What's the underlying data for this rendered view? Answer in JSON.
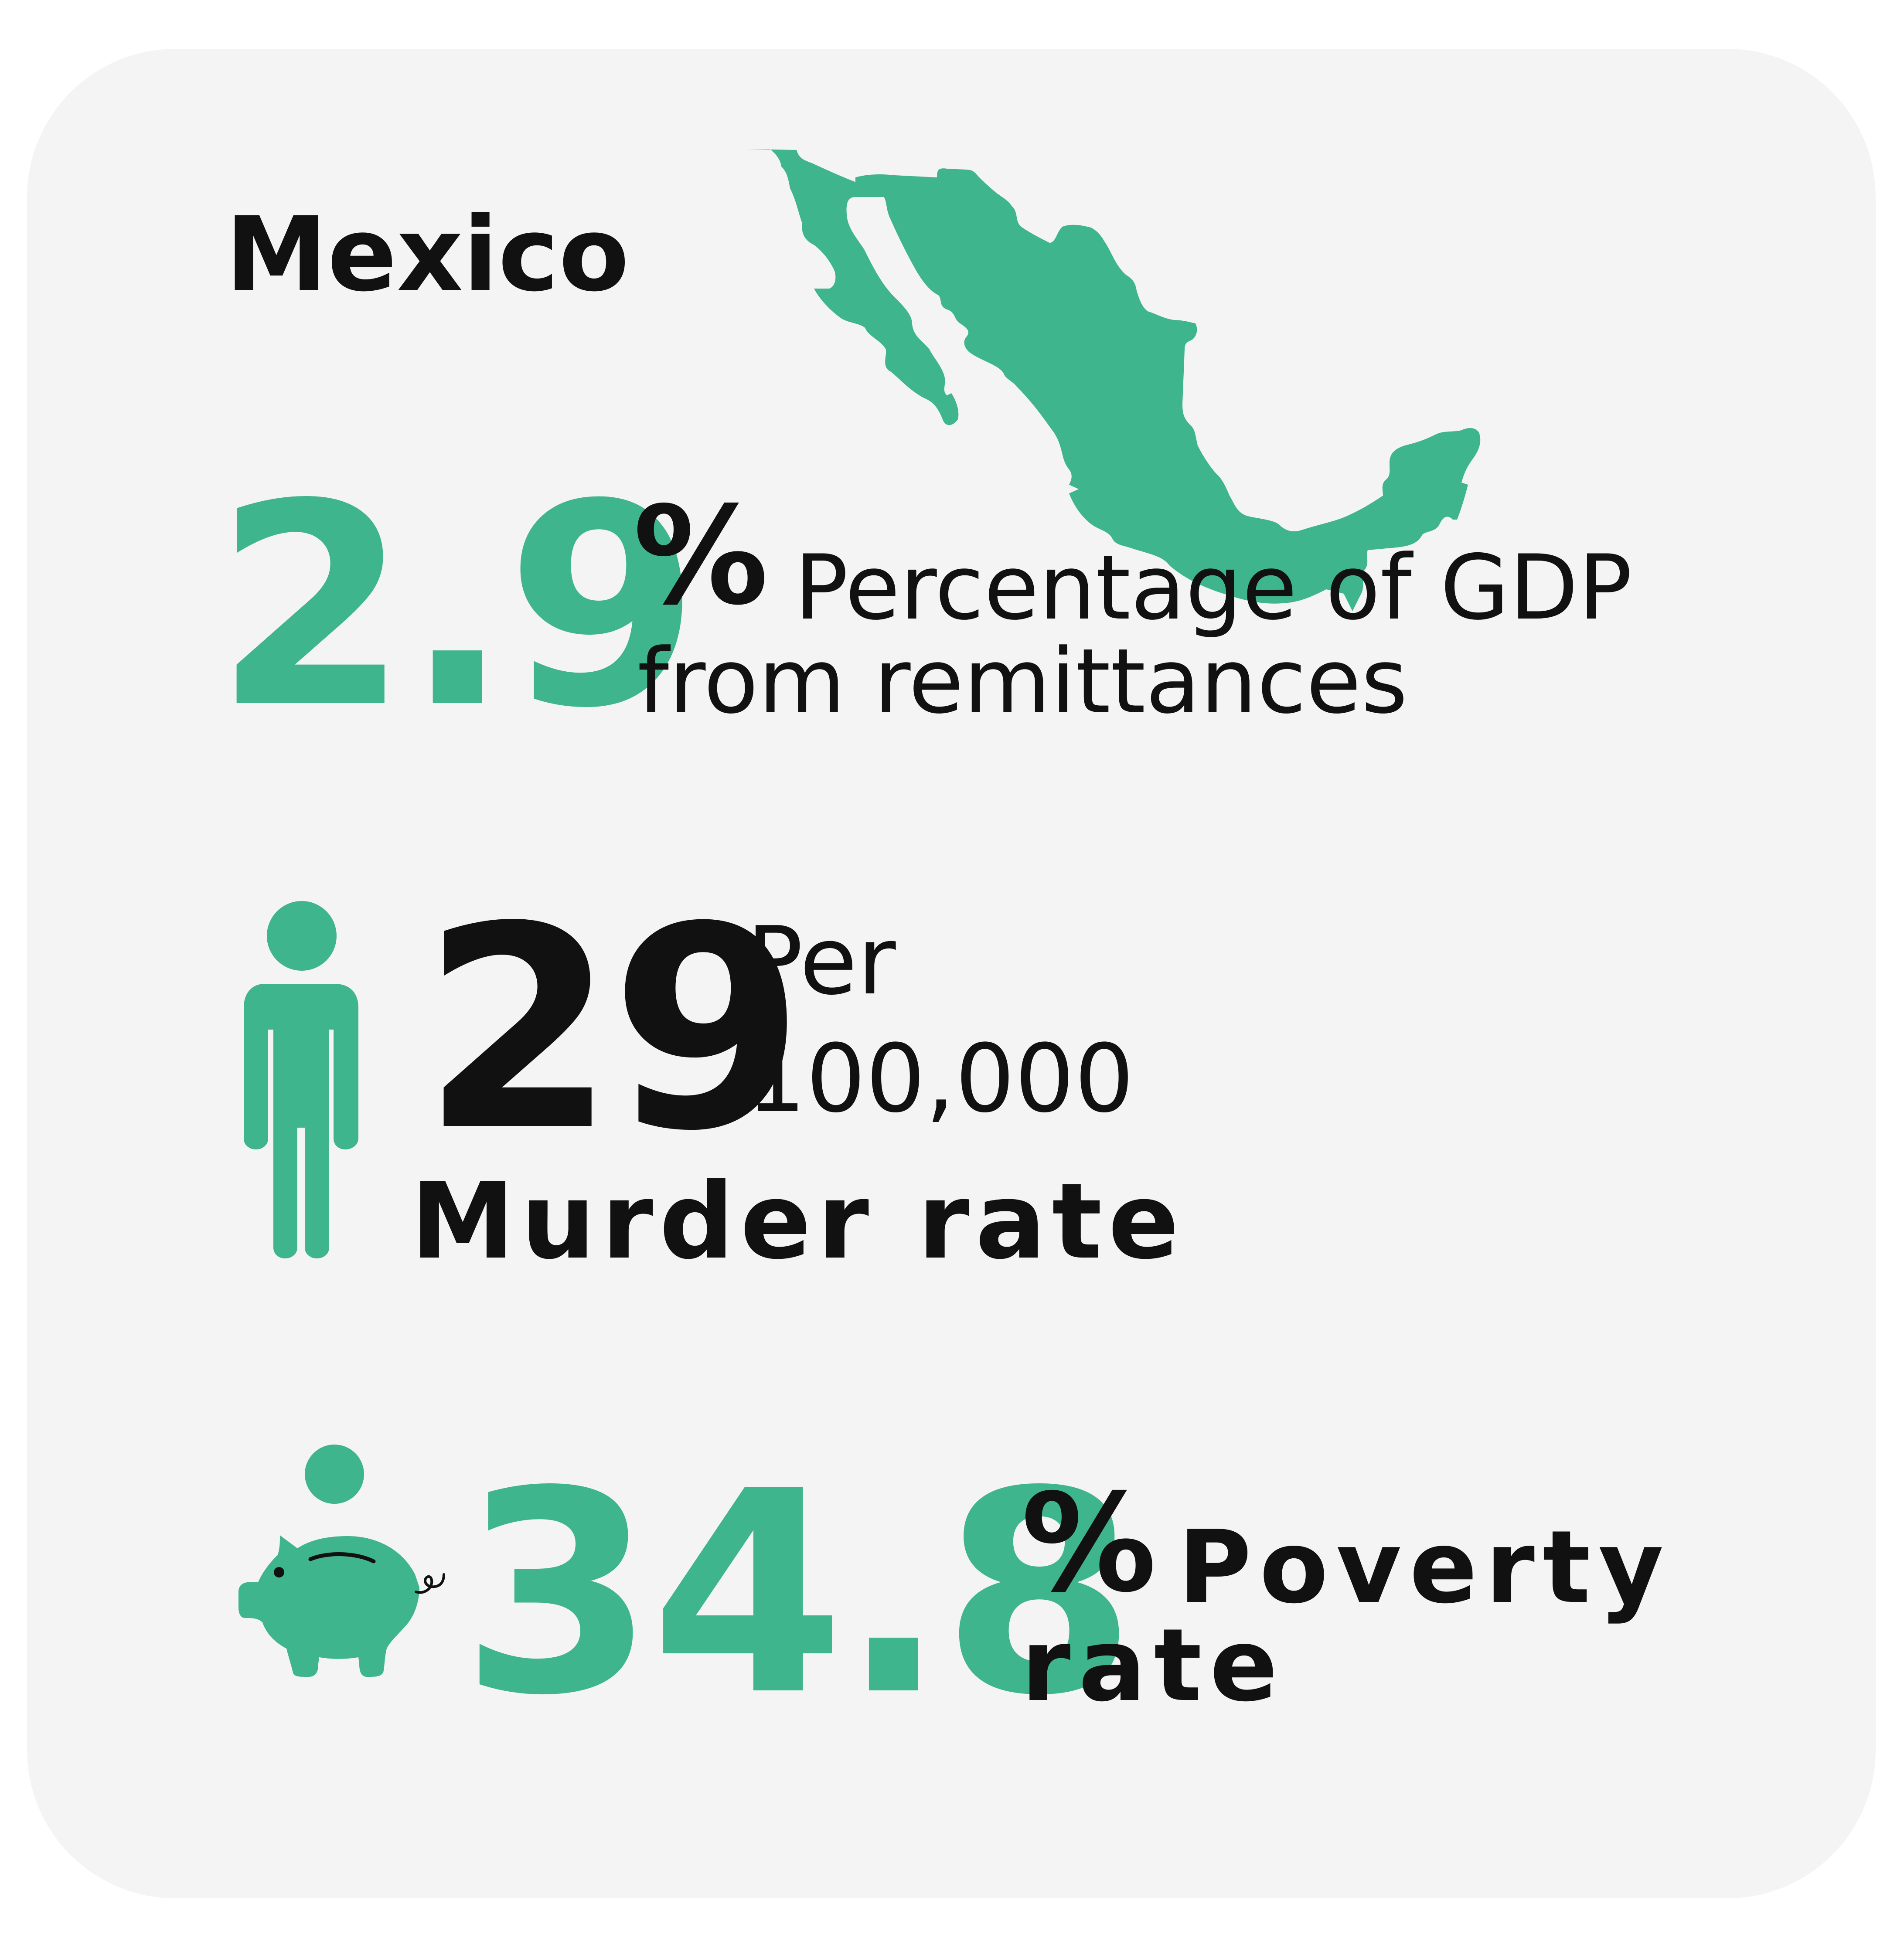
{
  "country": "Mexico",
  "colors": {
    "accent": "#3fb58e",
    "text": "#111111",
    "card": "#f4f4f4"
  },
  "remittances": {
    "value": "2.9",
    "unit": "%",
    "label_line1": "Percentage of GDP",
    "label_line2": "from remittances"
  },
  "murder": {
    "value": "29",
    "unit_line1": "Per",
    "unit_line2": "100,000",
    "label": "Murder rate"
  },
  "poverty": {
    "value": "34.8",
    "unit": "%",
    "label_line1": "Poverty",
    "label_line2": "rate"
  },
  "icons": {
    "map": "mexico-map-icon",
    "person": "person-icon",
    "pig": "piggy-bank-icon"
  }
}
